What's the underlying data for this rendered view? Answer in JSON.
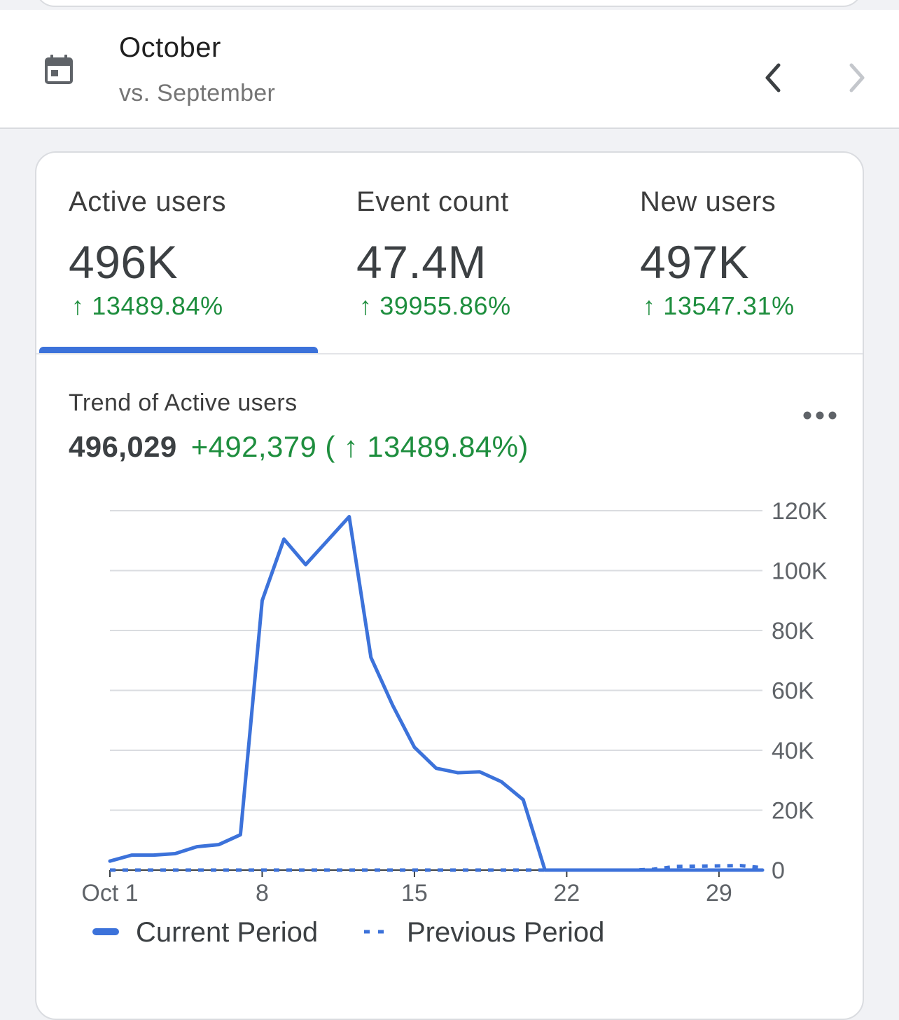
{
  "header": {
    "month": "October",
    "comparison": "vs. September"
  },
  "metrics": [
    {
      "label": "Active users",
      "value": "496K",
      "change": "↑ 13489.84%",
      "selected": true
    },
    {
      "label": "Event count",
      "value": "47.4M",
      "change": "↑ 39955.86%",
      "selected": false
    },
    {
      "label": "New users",
      "value": "497K",
      "change": "↑ 13547.31%",
      "selected": false
    }
  ],
  "trend": {
    "title": "Trend of Active users",
    "total": "496,029",
    "delta": "+492,379 ( ↑ 13489.84%)"
  },
  "icons": {
    "calendar": "calendar-icon",
    "prev": "chevron-left-icon",
    "next": "chevron-right-icon",
    "more": "more-horiz-icon"
  },
  "colors": {
    "accent": "#3c72da",
    "positive": "#1e8e3e",
    "grid": "#dadce0"
  },
  "chart_data": {
    "type": "line",
    "x": [
      1,
      2,
      3,
      4,
      5,
      6,
      7,
      8,
      9,
      10,
      11,
      12,
      13,
      14,
      15,
      16,
      17,
      18,
      19,
      20,
      21,
      22,
      23,
      24,
      25,
      26,
      27,
      28,
      29,
      30,
      31
    ],
    "x_ticks": [
      1,
      8,
      15,
      22,
      29
    ],
    "x_tick_labels": [
      "Oct 1",
      "8",
      "15",
      "22",
      "29"
    ],
    "y_ticks": [
      0,
      20000,
      40000,
      60000,
      80000,
      100000,
      120000
    ],
    "y_tick_labels": [
      "0",
      "20K",
      "40K",
      "60K",
      "80K",
      "100K",
      "120K"
    ],
    "ylim": [
      0,
      120000
    ],
    "grid": true,
    "y_axis_position": "right",
    "legend_position": "bottom",
    "series": [
      {
        "name": "Current Period",
        "style": "solid",
        "values": [
          3000,
          5000,
          5000,
          5500,
          7800,
          8500,
          11800,
          90000,
          110500,
          102000,
          110000,
          118000,
          71000,
          55000,
          41000,
          34000,
          32500,
          32800,
          29500,
          23500,
          0,
          0,
          0,
          0,
          0,
          0,
          0,
          0,
          0,
          0,
          0
        ]
      },
      {
        "name": "Previous Period",
        "style": "dotted",
        "values": [
          0,
          0,
          0,
          0,
          0,
          0,
          0,
          0,
          0,
          0,
          0,
          0,
          0,
          0,
          0,
          0,
          0,
          0,
          0,
          0,
          0,
          0,
          0,
          0,
          0,
          300,
          1200,
          1300,
          1400,
          1500,
          800
        ]
      }
    ]
  }
}
